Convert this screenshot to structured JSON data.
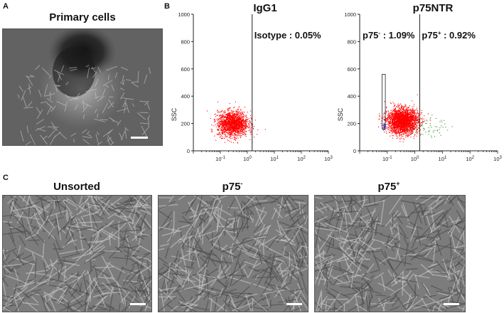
{
  "panels": {
    "a": {
      "letter": "A",
      "title": "Primary cells"
    },
    "b": {
      "letter": "B"
    },
    "c": {
      "letter": "C",
      "titles": [
        "Unsorted",
        "p75",
        "p75"
      ],
      "superscripts": [
        "",
        "-",
        "+"
      ]
    }
  },
  "chart_data": [
    {
      "type": "scatter",
      "title": "IgG1",
      "ylabel": "SSC",
      "xscale": "log",
      "xlim": [
        0.01,
        1000
      ],
      "ylim": [
        0,
        1000
      ],
      "yticks": [
        "0",
        "200",
        "400",
        "600",
        "800",
        "1000"
      ],
      "xticks": [
        {
          "base": "10",
          "exp": "-1"
        },
        {
          "base": "10",
          "exp": "0"
        },
        {
          "base": "10",
          "exp": "1"
        },
        {
          "base": "10",
          "exp": "2"
        },
        {
          "base": "10",
          "exp": "3"
        }
      ],
      "gate_x": 1.5,
      "annotations": [
        {
          "text": "Isotype : 0.05%",
          "position": "top-right"
        }
      ],
      "series": [
        {
          "color": "#ff0000",
          "center_x": 0.28,
          "center_y": 200,
          "count": 1800
        }
      ]
    },
    {
      "type": "scatter",
      "title": "p75NTR",
      "ylabel": "SSC",
      "xscale": "log",
      "xlim": [
        0.01,
        1000
      ],
      "ylim": [
        0,
        1000
      ],
      "yticks": [
        "0",
        "200",
        "400",
        "600",
        "800",
        "1000"
      ],
      "xticks": [
        {
          "base": "10",
          "exp": "-1"
        },
        {
          "base": "10",
          "exp": "0"
        },
        {
          "base": "10",
          "exp": "1"
        },
        {
          "base": "10",
          "exp": "2"
        },
        {
          "base": "10",
          "exp": "3"
        }
      ],
      "gate_x": 1.5,
      "annotations": [
        {
          "text_main": "p75",
          "sup": "-",
          "text_rest": " : 1.09%",
          "position": "top-left"
        },
        {
          "text_main": "p75",
          "sup": "+",
          "text_rest": " : 0.92%",
          "position": "top-right"
        }
      ],
      "gate_box": {
        "x0": 0.065,
        "x1": 0.085,
        "y0": 160,
        "y1": 560
      },
      "series": [
        {
          "color": "#ff0000",
          "center_x": 0.35,
          "center_y": 220,
          "count": 2600
        },
        {
          "color": "#2a8a2a",
          "center_x": 3.0,
          "center_y": 180,
          "count": 60
        },
        {
          "color": "#1f3fff",
          "center_x": 0.075,
          "center_y": 180,
          "count": 25
        }
      ]
    }
  ]
}
